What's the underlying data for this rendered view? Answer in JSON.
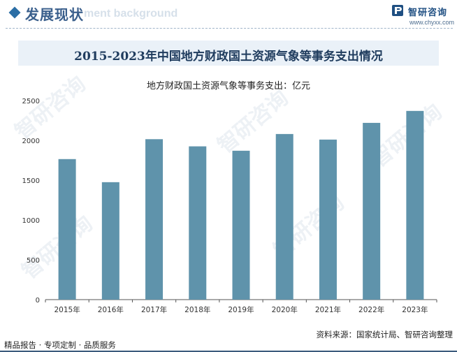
{
  "header": {
    "section_title": "发展现状",
    "section_bg_text": "ment background",
    "logo_name": "智研咨询",
    "logo_url": "www.chyxx.com",
    "watermark": "智研咨询"
  },
  "colors": {
    "bar": "#5f93ab",
    "header_accent": "#2b6ea5",
    "title_band": "#eaf1f8"
  },
  "chart_data": {
    "type": "bar",
    "title": "2015-2023年中国地方财政国土资源气象等事务支出情况",
    "series_label": "地方财政国土资源气象等事务支出：亿元",
    "categories": [
      "2015年",
      "2016年",
      "2017年",
      "2018年",
      "2019年",
      "2020年",
      "2021年",
      "2022年",
      "2023年"
    ],
    "values": [
      1765,
      1475,
      2015,
      1925,
      1870,
      2080,
      2010,
      2220,
      2370
    ],
    "yticks": [
      0,
      500,
      1000,
      1500,
      2000,
      2500
    ],
    "ylim": [
      0,
      2500
    ],
    "grid": false
  },
  "footer": {
    "services": "精品报告 · 专项定制 · 品质服务",
    "source": "资料来源：国家统计局、智研咨询整理"
  }
}
